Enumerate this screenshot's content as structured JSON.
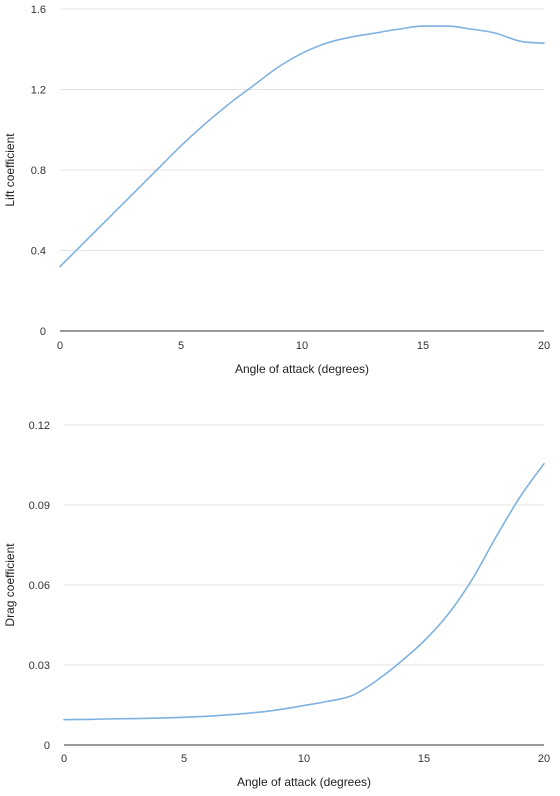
{
  "colors": {
    "series": "#7fb2e0",
    "grid": "#e4e4e4",
    "axis": "#333333"
  },
  "chart_data": [
    {
      "type": "line",
      "title": "",
      "xlabel": "Angle of attack (degrees)",
      "ylabel": "Lift coefficient",
      "xlim": [
        0,
        20
      ],
      "ylim": [
        0,
        1.6
      ],
      "x_ticks": [
        0,
        5,
        10,
        15,
        20
      ],
      "y_ticks": [
        0,
        0.4,
        0.8,
        1.2,
        1.6
      ],
      "x_tick_labels": [
        "0",
        "5",
        "10",
        "15",
        "20"
      ],
      "y_tick_labels": [
        "0",
        "0.4",
        "0.8",
        "1.2",
        "1.6"
      ],
      "grid": true,
      "legend": "none",
      "series": [
        {
          "x": [
            0,
            1,
            2,
            3,
            4,
            5,
            6,
            7,
            8,
            9,
            10,
            11,
            12,
            13,
            14,
            15,
            16,
            17,
            18,
            19,
            20
          ],
          "y": [
            0.32,
            0.44,
            0.56,
            0.68,
            0.8,
            0.92,
            1.03,
            1.13,
            1.22,
            1.31,
            1.38,
            1.43,
            1.46,
            1.48,
            1.5,
            1.515,
            1.515,
            1.5,
            1.48,
            1.44,
            1.43
          ]
        }
      ]
    },
    {
      "type": "line",
      "title": "",
      "xlabel": "Angle of attack (degrees)",
      "ylabel": "Drag coefficient",
      "xlim": [
        0,
        20
      ],
      "ylim": [
        0,
        0.12
      ],
      "x_ticks": [
        0,
        5,
        10,
        15,
        20
      ],
      "y_ticks": [
        0,
        0.03,
        0.06,
        0.09,
        0.12
      ],
      "x_tick_labels": [
        "0",
        "5",
        "10",
        "15",
        "20"
      ],
      "y_tick_labels": [
        "0",
        "0.03",
        "0.06",
        "0.09",
        "0.12"
      ],
      "grid": true,
      "legend": "none",
      "series": [
        {
          "x": [
            0,
            1,
            2,
            3,
            4,
            5,
            6,
            7,
            8,
            9,
            10,
            11,
            12,
            13,
            14,
            15,
            16,
            17,
            18,
            19,
            20
          ],
          "y": [
            0.0095,
            0.0096,
            0.0098,
            0.0099,
            0.0101,
            0.0104,
            0.0108,
            0.0114,
            0.0122,
            0.0133,
            0.0148,
            0.0164,
            0.0185,
            0.024,
            0.031,
            0.039,
            0.049,
            0.062,
            0.078,
            0.093,
            0.1055
          ]
        }
      ]
    }
  ]
}
